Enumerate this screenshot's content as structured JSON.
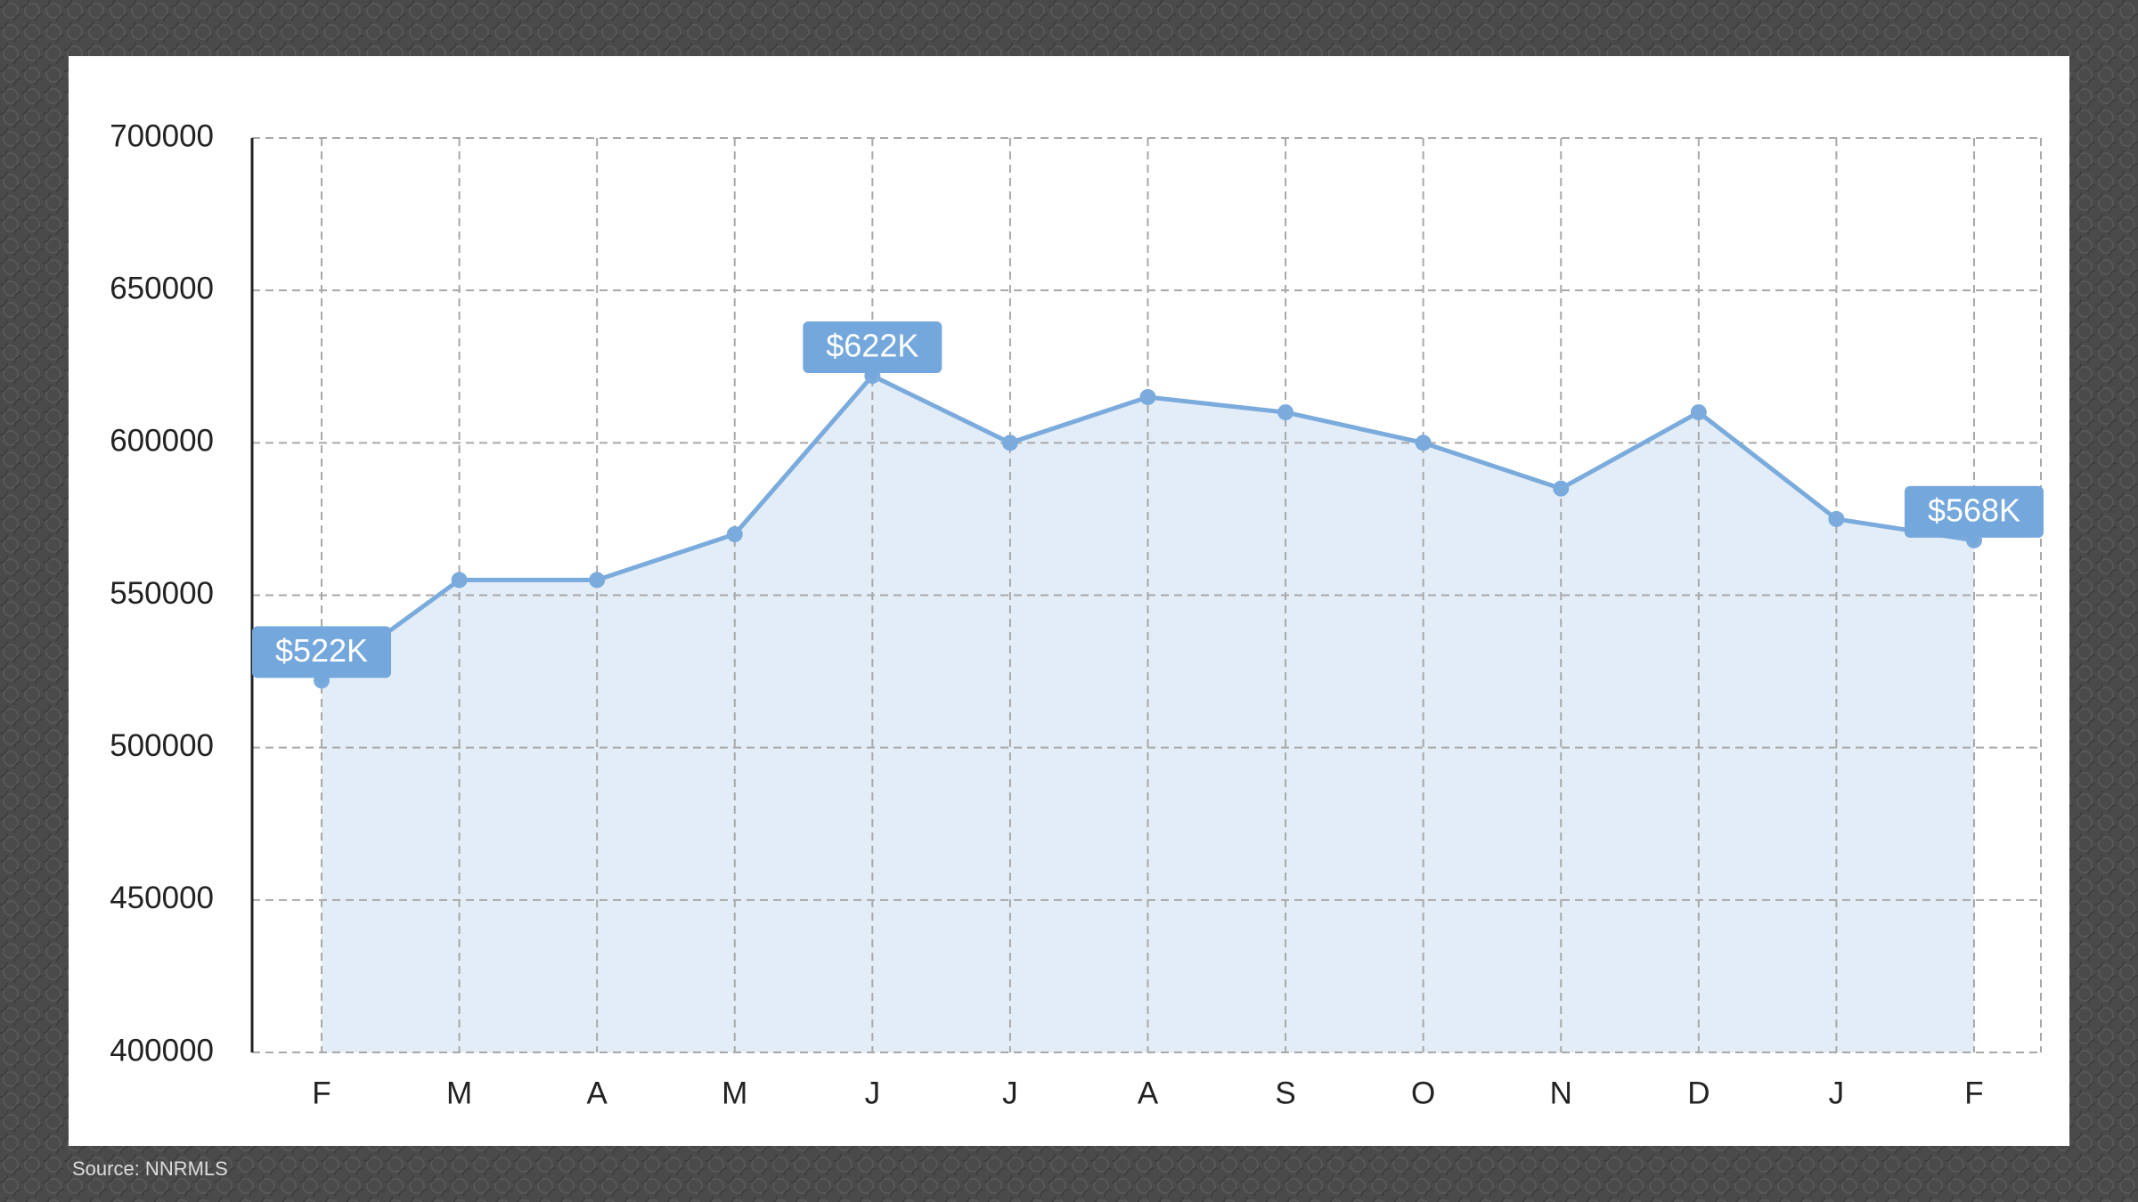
{
  "chart_data": {
    "type": "area",
    "categories": [
      "F",
      "M",
      "A",
      "M",
      "J",
      "J",
      "A",
      "S",
      "O",
      "N",
      "D",
      "J",
      "F"
    ],
    "values": [
      522000,
      555000,
      555000,
      570000,
      622000,
      600000,
      615000,
      610000,
      600000,
      585000,
      610000,
      575000,
      568000
    ],
    "value_labels": [
      "$522K",
      null,
      null,
      null,
      "$622K",
      null,
      null,
      null,
      null,
      null,
      null,
      null,
      "$568K"
    ],
    "color": "#7aabdc",
    "ylim": [
      400000,
      700000
    ],
    "yticks": [
      400000,
      450000,
      500000,
      550000,
      600000,
      650000,
      700000
    ],
    "grid": true,
    "source": "Source: NNRMLS"
  }
}
